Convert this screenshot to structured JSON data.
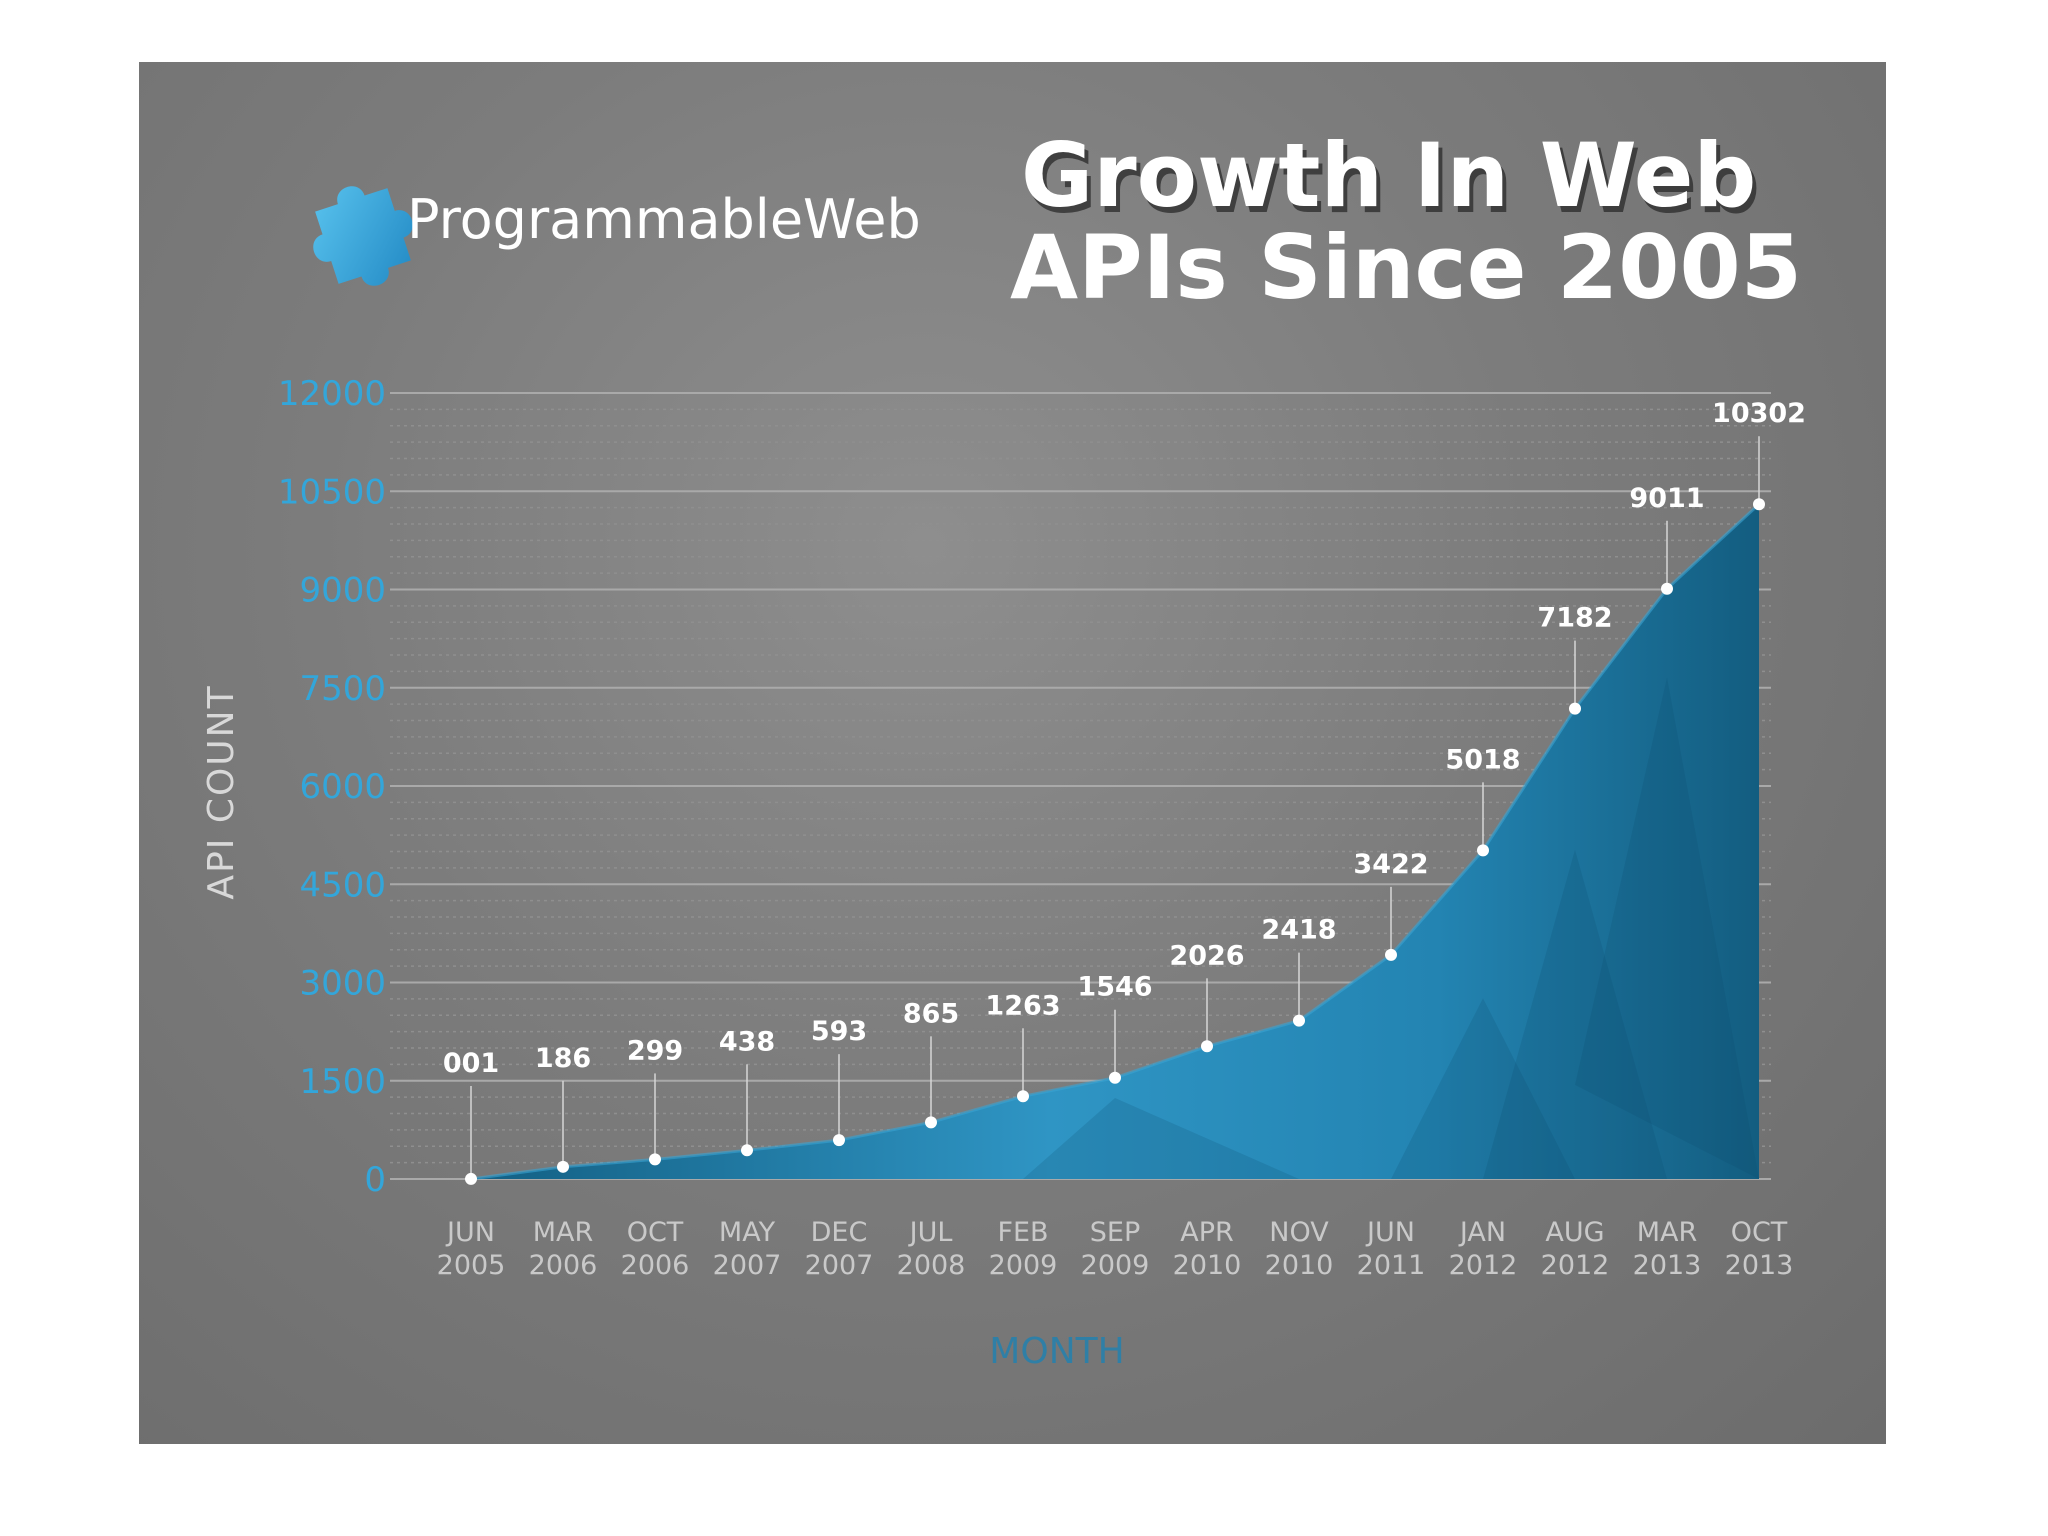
{
  "brand": {
    "name": "ProgrammableWeb",
    "icon": "puzzle-piece-icon",
    "icon_color": "#33a6da"
  },
  "colors": {
    "area": "#1f7fa6",
    "area_light": "#39a9d6",
    "area_dark": "#125d80",
    "ytick": "#33a6da",
    "background": "#7c7c7c"
  },
  "chart_data": {
    "type": "area",
    "title": "Growth In Web APIs Since 2005",
    "title_lines": [
      "Growth In Web",
      "APIs Since 2005"
    ],
    "xlabel": "MONTH",
    "ylabel": "API COUNT",
    "ylim": [
      0,
      12000
    ],
    "yticks": [
      0,
      1500,
      3000,
      4500,
      6000,
      7500,
      9000,
      10500,
      12000
    ],
    "ytick_labels": [
      "0",
      "1500",
      "3000",
      "4500",
      "6000",
      "7500",
      "9000",
      "10500",
      "12000"
    ],
    "grid": true,
    "categories": [
      [
        "JUN",
        "2005"
      ],
      [
        "MAR",
        "2006"
      ],
      [
        "OCT",
        "2006"
      ],
      [
        "MAY",
        "2007"
      ],
      [
        "DEC",
        "2007"
      ],
      [
        "JUL",
        "2008"
      ],
      [
        "FEB",
        "2009"
      ],
      [
        "SEP",
        "2009"
      ],
      [
        "APR",
        "2010"
      ],
      [
        "NOV",
        "2010"
      ],
      [
        "JUN",
        "2011"
      ],
      [
        "JAN",
        "2012"
      ],
      [
        "AUG",
        "2012"
      ],
      [
        "MAR",
        "2013"
      ],
      [
        "OCT",
        "2013"
      ]
    ],
    "values": [
      1,
      186,
      299,
      438,
      593,
      865,
      1263,
      1546,
      2026,
      2418,
      3422,
      5018,
      7182,
      9011,
      10302
    ],
    "value_labels": [
      "001",
      "186",
      "299",
      "438",
      "593",
      "865",
      "1263",
      "1546",
      "2026",
      "2418",
      "3422",
      "5018",
      "7182",
      "9011",
      "10302"
    ]
  }
}
